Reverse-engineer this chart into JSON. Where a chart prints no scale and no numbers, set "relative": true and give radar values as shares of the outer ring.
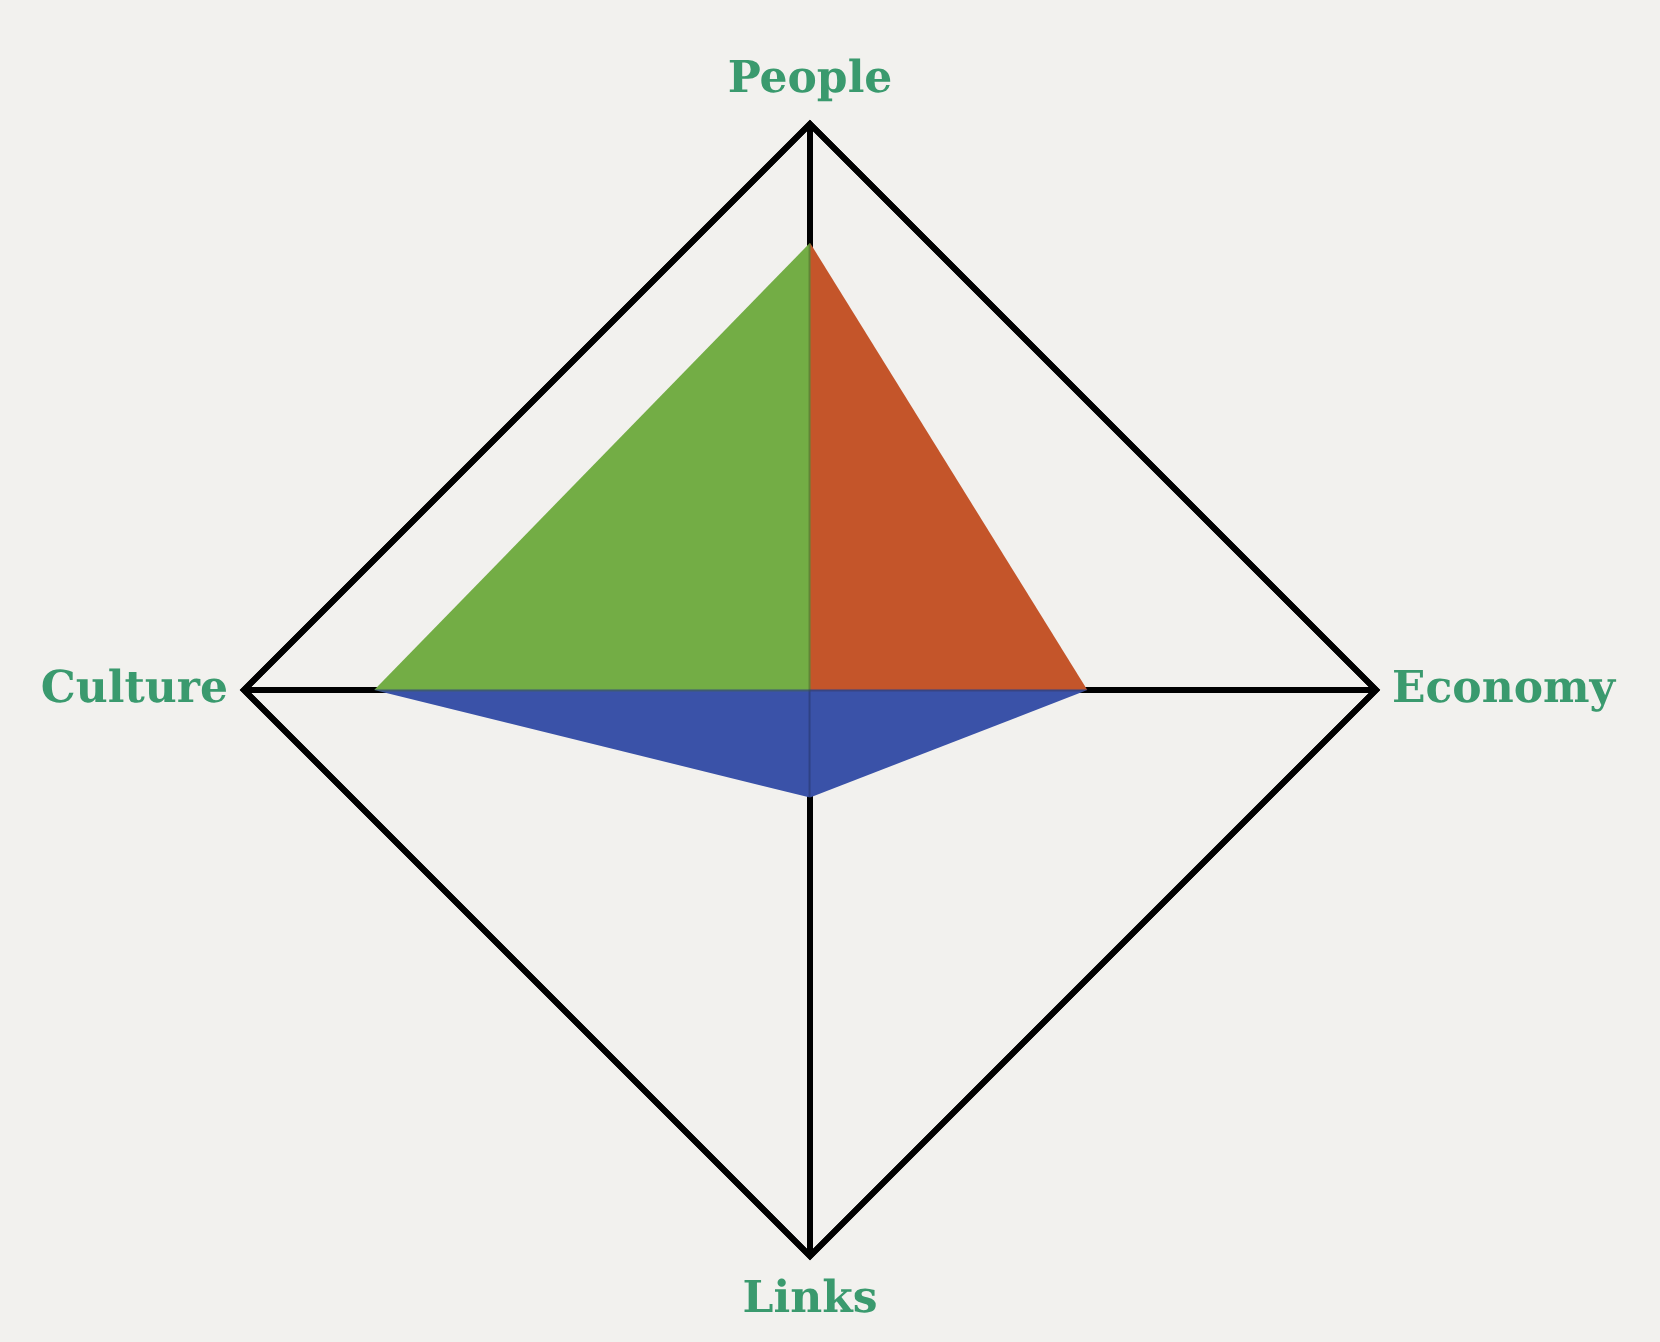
{
  "chart_data": {
    "type": "radar",
    "relative": true,
    "categories": [
      "People",
      "Economy",
      "Links",
      "Culture"
    ],
    "series": [
      {
        "colors": [
          "#c4552a",
          "#3a52a8",
          "#3a52a8",
          "#73ad45"
        ],
        "values": [
          0.79,
          0.49,
          0.19,
          0.77
        ]
      }
    ],
    "grid": true,
    "legend": false
  }
}
